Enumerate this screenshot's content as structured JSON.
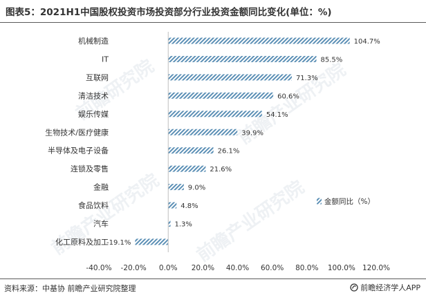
{
  "title": "图表5：2021H1中国股权投资市场投资部分行业投资金额同比变化(单位：%)",
  "source": "资料来源：中基协 前瞻产业研究院整理",
  "brand": "前瞻经济学人APP",
  "watermarks": [
    "前瞻研究院",
    "前瞻产业研究院"
  ],
  "colors": {
    "bar": "#5b8fb5",
    "bar_bg": "#ffffff",
    "axis": "#333333",
    "label": "#333333"
  },
  "chart_data": {
    "type": "bar",
    "orientation": "horizontal",
    "categories": [
      "机械制造",
      "IT",
      "互联网",
      "清洁技术",
      "娱乐传媒",
      "生物技术/医疗健康",
      "半导体及电子设备",
      "连锁及零售",
      "金融",
      "食品饮料",
      "汽车",
      "化工原料及加工"
    ],
    "series": [
      {
        "name": "金额同比（%）",
        "values": [
          104.7,
          85.5,
          71.3,
          60.6,
          54.1,
          39.9,
          26.1,
          21.6,
          9.0,
          4.8,
          1.3,
          -19.1
        ],
        "labels": [
          "104.7%",
          "85.5%",
          "71.3%",
          "60.6%",
          "54.1%",
          "39.9%",
          "26.1%",
          "21.6%",
          "9.0%",
          "4.8%",
          "1.3%",
          "-19.1%"
        ]
      }
    ],
    "xlim": [
      -40,
      120
    ],
    "xticks": [
      -40,
      -20,
      0,
      20,
      40,
      60,
      80,
      100,
      120
    ],
    "xtick_labels": [
      "-40.0%",
      "-20.0%",
      "0.0%",
      "20.0%",
      "40.0%",
      "60.0%",
      "80.0%",
      "100.0%",
      "120.0%"
    ],
    "bar_pattern": "diagonal-hatch",
    "legend_position": "right",
    "grid": false
  }
}
